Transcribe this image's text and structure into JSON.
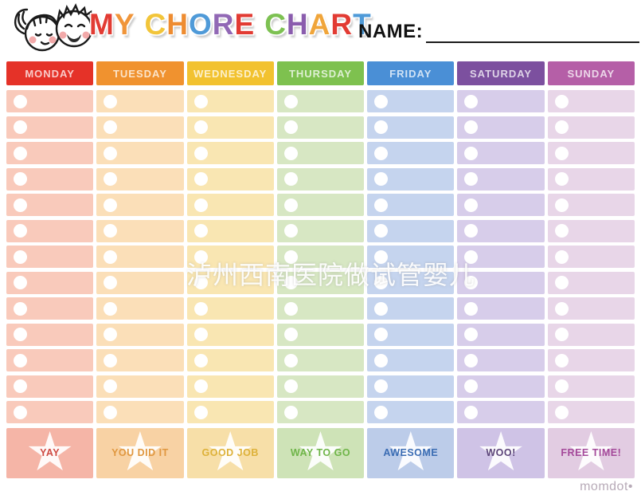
{
  "title": {
    "text": "MY CHORE CHART",
    "letters": [
      {
        "ch": "M",
        "color": "#e23b33"
      },
      {
        "ch": "Y",
        "color": "#f0953a"
      },
      {
        "ch": " "
      },
      {
        "ch": "C",
        "color": "#f2c53a"
      },
      {
        "ch": "H",
        "color": "#ee8c31"
      },
      {
        "ch": "O",
        "color": "#4f9ad8"
      },
      {
        "ch": "R",
        "color": "#9168b5"
      },
      {
        "ch": "E",
        "color": "#e23b33"
      },
      {
        "ch": " "
      },
      {
        "ch": "C",
        "color": "#7dc152"
      },
      {
        "ch": "H",
        "color": "#8a5cad"
      },
      {
        "ch": "A",
        "color": "#f0a53a"
      },
      {
        "ch": "R",
        "color": "#e23b33"
      },
      {
        "ch": "T",
        "color": "#4f9ad8"
      }
    ]
  },
  "name_field": {
    "label": "NAME:",
    "value": ""
  },
  "rows_per_day": 13,
  "days": [
    {
      "label": "MONDAY",
      "header_color": "#e53228",
      "row_color": "#f9cabb",
      "star_cell_color": "#f5b5a7",
      "star_label": "YAY",
      "star_label_color": "#cf4a42"
    },
    {
      "label": "TUESDAY",
      "header_color": "#f0922f",
      "row_color": "#fbdfb8",
      "star_cell_color": "#f8d2a4",
      "star_label": "YOU DID IT",
      "star_label_color": "#e0973f"
    },
    {
      "label": "WEDNESDAY",
      "header_color": "#f2c230",
      "row_color": "#f9e6b2",
      "star_cell_color": "#f7dfa8",
      "star_label": "GOOD JOB",
      "star_label_color": "#ddb138"
    },
    {
      "label": "THURSDAY",
      "header_color": "#7ec14f",
      "row_color": "#d7e7c3",
      "star_cell_color": "#cee3b7",
      "star_label": "WAY TO GO",
      "star_label_color": "#6fb549"
    },
    {
      "label": "FRIDAY",
      "header_color": "#4a8fd6",
      "row_color": "#c5d4ee",
      "star_cell_color": "#bccce9",
      "star_label": "AWESOME",
      "star_label_color": "#3a6cb3"
    },
    {
      "label": "SATURDAY",
      "header_color": "#7c509f",
      "row_color": "#d7cdea",
      "star_cell_color": "#cfc3e6",
      "star_label": "WOO!",
      "star_label_color": "#5c4579"
    },
    {
      "label": "SUNDAY",
      "header_color": "#b55fa7",
      "row_color": "#e8d6e8",
      "star_cell_color": "#e2cce2",
      "star_label": "FREE TIME!",
      "star_label_color": "#a4499a"
    }
  ],
  "watermark": {
    "text": "泸州西南医院做试管婴儿"
  },
  "footer": {
    "brand": "momdot•"
  }
}
